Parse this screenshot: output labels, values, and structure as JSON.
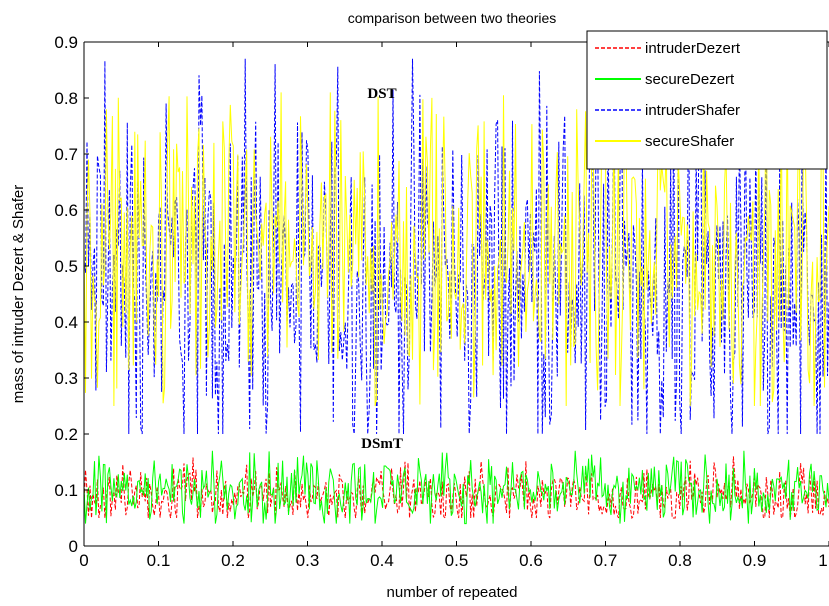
{
  "chart_data": {
    "type": "line",
    "title": "comparison between two theories",
    "xlabel": "number of repeated",
    "ylabel": "mass of intruder Dezert & Shafer",
    "xlim": [
      0,
      1
    ],
    "ylim": [
      0,
      0.9
    ],
    "xticks": [
      0,
      0.1,
      0.2,
      0.3,
      0.4,
      0.5,
      0.6,
      0.7,
      0.8,
      0.9,
      1
    ],
    "xtick_labels": [
      "0",
      "0.1",
      "0.2",
      "0.3",
      "0.4",
      "0.5",
      "0.6",
      "0.7",
      "0.8",
      "0.9",
      "1"
    ],
    "yticks": [
      0,
      0.1,
      0.2,
      0.3,
      0.4,
      0.5,
      0.6,
      0.7,
      0.8,
      0.9
    ],
    "ytick_labels": [
      "0",
      "0.1",
      "0.2",
      "0.3",
      "0.4",
      "0.5",
      "0.6",
      "0.7",
      "0.8",
      "0.9"
    ],
    "grid": false,
    "legend_position": "top-right",
    "annotations": [
      {
        "text": "DST",
        "x": 0.4,
        "y": 0.8
      },
      {
        "text": "DSmT",
        "x": 0.4,
        "y": 0.175
      }
    ],
    "series": [
      {
        "name": "intruderDezert",
        "color": "#ff0000",
        "style": "dashed",
        "mean": 0.09,
        "min": 0.05,
        "max": 0.16
      },
      {
        "name": "secureDezert",
        "color": "#00ff00",
        "style": "solid",
        "mean": 0.1,
        "min": 0.04,
        "max": 0.17
      },
      {
        "name": "intruderShafer",
        "color": "#0000ff",
        "style": "dashed",
        "mean": 0.48,
        "min": 0.2,
        "max": 0.87
      },
      {
        "name": "secureShafer",
        "color": "#ffff00",
        "style": "solid",
        "mean": 0.52,
        "min": 0.25,
        "max": 0.81
      }
    ]
  }
}
